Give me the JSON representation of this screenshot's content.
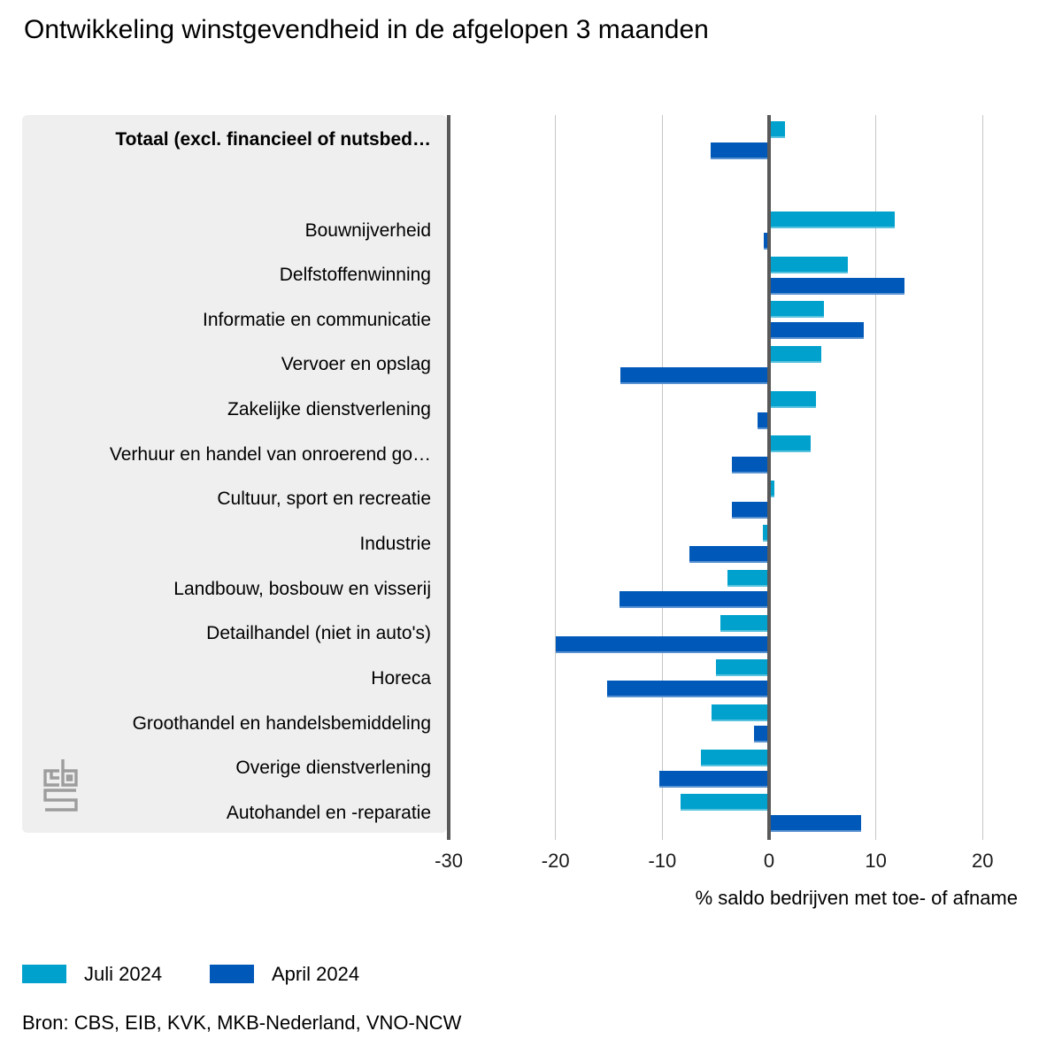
{
  "title": "Ontwikkeling winstgevendheid in de afgelopen 3 maanden",
  "chart_data": {
    "type": "bar",
    "orientation": "horizontal",
    "categories": [
      "Totaal (excl. financieel of nutsbed…",
      "Bouwnijverheid",
      "Delfstoffenwinning",
      "Informatie en communicatie",
      "Vervoer en opslag",
      "Zakelijke dienstverlening",
      "Verhuur en handel van onroerend go…",
      "Cultuur, sport en recreatie",
      "Industrie",
      "Landbouw, bosbouw en visserij",
      "Detailhandel (niet in auto's)",
      "Horeca",
      "Groothandel en handelsbemiddeling",
      "Overige dienstverlening",
      "Autohandel en -reparatie"
    ],
    "series": [
      {
        "name": "Juli 2024",
        "color": "#00a1cd",
        "values": [
          1.5,
          11.8,
          7.4,
          5.1,
          4.9,
          4.4,
          3.9,
          0.5,
          -0.6,
          -3.9,
          -4.6,
          -5.0,
          -5.4,
          -6.4,
          -8.3
        ]
      },
      {
        "name": "April 2024",
        "color": "#0058b8",
        "values": [
          -5.5,
          -0.5,
          12.7,
          8.9,
          -13.9,
          -1.1,
          -3.5,
          -3.5,
          -7.5,
          -14.0,
          -20.0,
          -15.2,
          -1.4,
          -10.3,
          8.6
        ]
      }
    ],
    "xlabel": "% saldo bedrijven met toe- of afname",
    "x_ticks": [
      -30,
      -20,
      -10,
      0,
      10,
      20
    ],
    "xlim": [
      -30,
      23.2
    ],
    "grid": true,
    "legend_position": "bottom-left"
  },
  "source": "Bron: CBS, EIB, KVK, MKB-Nederland, VNO-NCW",
  "logo": "cbs-logo",
  "colors": {
    "panel_background": "#efefef",
    "axis_line": "#595959",
    "gridline": "#c7c7c7",
    "logo_gray": "#9d9d9d"
  }
}
